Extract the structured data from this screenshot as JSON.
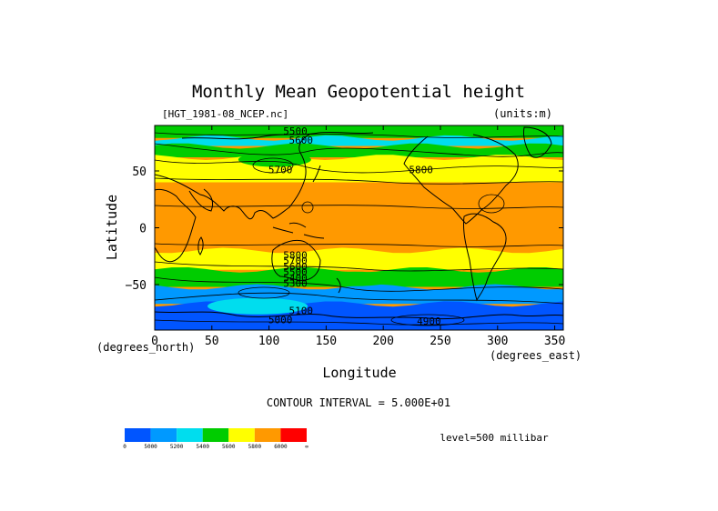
{
  "chart_data": {
    "type": "heatmap",
    "title": "Monthly Mean Geopotential height",
    "subtitle_left": "[HGT_1981-08_NCEP.nc]",
    "subtitle_right": "(units:m)",
    "xlabel": "Longitude",
    "ylabel": "Latitude",
    "x_unit_label": "(degrees_east)",
    "y_unit_label": "(degrees_north)",
    "xlim": [
      0,
      357.5
    ],
    "ylim": [
      -90,
      90
    ],
    "x_ticks": [
      0,
      50,
      100,
      150,
      200,
      250,
      300,
      350
    ],
    "y_ticks": [
      50,
      0,
      -50
    ],
    "y_tick_labels": [
      "50",
      "0",
      "−50"
    ],
    "contour_interval_text": "CONTOUR INTERVAL = 5.000E+01",
    "level_text": "level=500 millibar",
    "contour_labels": [
      {
        "text": "5400",
        "lon": 117,
        "lat": 91
      },
      {
        "text": "5500",
        "lon": 123,
        "lat": 82
      },
      {
        "text": "5600",
        "lon": 128,
        "lat": 74
      },
      {
        "text": "5700",
        "lon": 110,
        "lat": 48
      },
      {
        "text": "5800",
        "lon": 233,
        "lat": 48
      },
      {
        "text": "5800",
        "lon": 123,
        "lat": -27
      },
      {
        "text": "5700",
        "lon": 123,
        "lat": -32
      },
      {
        "text": "5600",
        "lon": 123,
        "lat": -37
      },
      {
        "text": "5500",
        "lon": 123,
        "lat": -42
      },
      {
        "text": "5400",
        "lon": 123,
        "lat": -47
      },
      {
        "text": "5300",
        "lon": 123,
        "lat": -52
      },
      {
        "text": "5100",
        "lon": 128,
        "lat": -76
      },
      {
        "text": "5000",
        "lon": 110,
        "lat": -84
      },
      {
        "text": "4900",
        "lon": 240,
        "lat": -85
      }
    ],
    "colorbar": {
      "levels": [
        "0",
        "5000",
        "5200",
        "5400",
        "5600",
        "5800",
        "6000",
        "∞"
      ],
      "colors": [
        "#0055ff",
        "#0099ff",
        "#00ddee",
        "#00cc00",
        "#ffff00",
        "#ff9900",
        "#ff0000"
      ]
    },
    "bands_nh": [
      {
        "lat": 90,
        "color": "#00cc00"
      },
      {
        "lat": 79,
        "color": "#00ddee"
      },
      {
        "lat": 72,
        "color": "#00cc00"
      },
      {
        "lat": 62,
        "color": "#ffff00"
      },
      {
        "lat": 40,
        "color": "#ff9900"
      }
    ],
    "bands_sh": [
      {
        "lat": -20,
        "color": "#ffff00"
      },
      {
        "lat": -37,
        "color": "#00cc00"
      },
      {
        "lat": -52,
        "color": "#0099ff"
      },
      {
        "lat": -67,
        "color": "#0055ff"
      }
    ]
  }
}
